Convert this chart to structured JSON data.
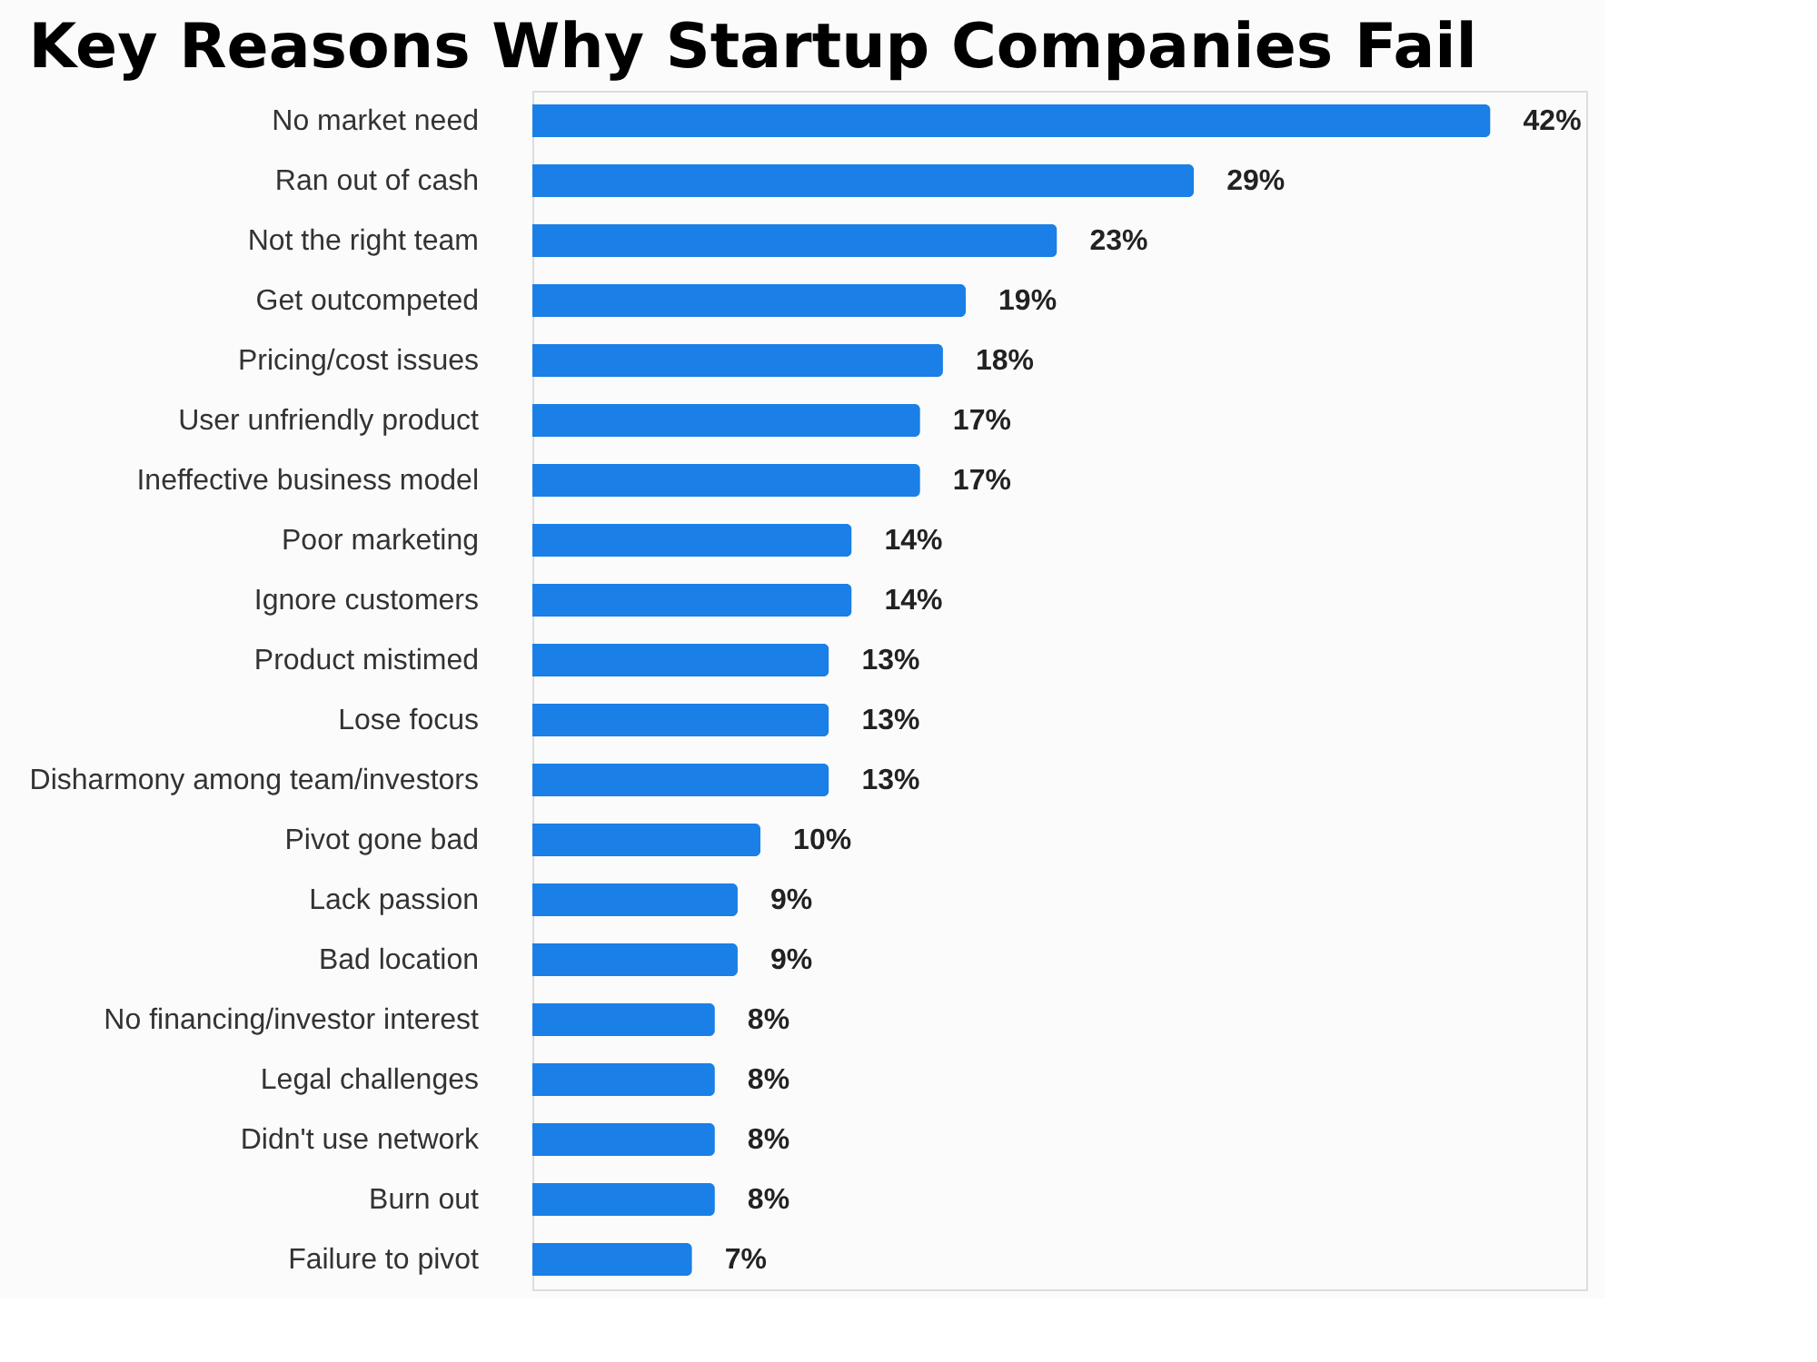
{
  "chart_data": {
    "type": "bar",
    "orientation": "horizontal",
    "title": "Key Reasons Why Startup Companies Fail",
    "categories": [
      "No market need",
      "Ran out of cash",
      "Not the right team",
      "Get outcompeted",
      "Pricing/cost issues",
      "User unfriendly product",
      "Ineffective business model",
      "Poor marketing",
      "Ignore customers",
      "Product mistimed",
      "Lose focus",
      "Disharmony among team/investors",
      "Pivot gone bad",
      "Lack passion",
      "Bad location",
      "No financing/investor interest",
      "Legal challenges",
      "Didn't use network",
      "Burn out",
      "Failure to pivot"
    ],
    "values": [
      42,
      29,
      23,
      19,
      18,
      17,
      17,
      14,
      14,
      13,
      13,
      13,
      10,
      9,
      9,
      8,
      8,
      8,
      8,
      7
    ],
    "value_labels": [
      "42%",
      "29%",
      "23%",
      "19%",
      "18%",
      "17%",
      "17%",
      "14%",
      "14%",
      "13%",
      "13%",
      "13%",
      "10%",
      "9%",
      "9%",
      "8%",
      "8%",
      "8%",
      "8%",
      "7%"
    ],
    "color": "#1a7fe6",
    "tick_labels": "y"
  }
}
